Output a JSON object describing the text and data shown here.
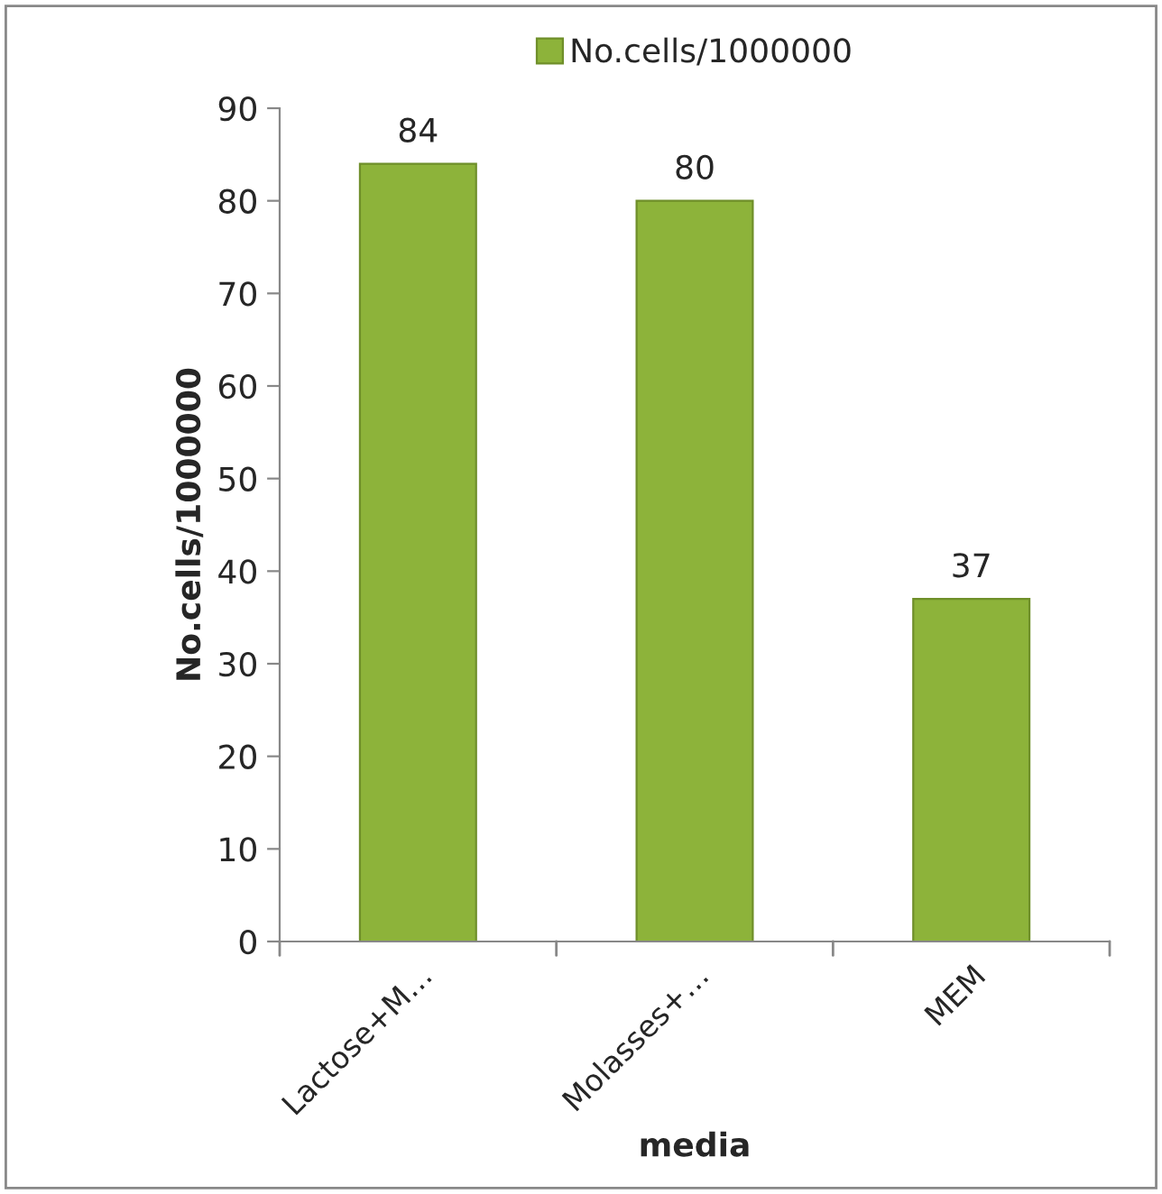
{
  "chart_data": {
    "type": "bar",
    "xlabel": "media",
    "ylabel": "No.cells/1000000",
    "categories": [
      "Lactose+M…",
      "Molasses+…",
      "MEM"
    ],
    "series": [
      {
        "name": "No.cells/1000000",
        "color": "#8db33a",
        "values": [
          84,
          80,
          37
        ]
      }
    ],
    "ylim": [
      0,
      90
    ],
    "yticks": [
      0,
      10,
      20,
      30,
      40,
      50,
      60,
      70,
      80,
      90
    ],
    "data_labels": true,
    "legend": "top",
    "grid": false
  }
}
